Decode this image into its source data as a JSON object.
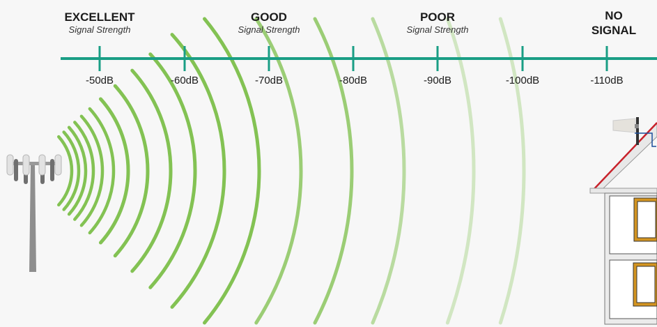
{
  "scale": {
    "categories": [
      {
        "label": "EXCELLENT",
        "sub": "Signal Strength"
      },
      {
        "label": "GOOD",
        "sub": "Signal Strength"
      },
      {
        "label": "POOR",
        "sub": "Signal Strength"
      },
      {
        "label": "NO SIGNAL",
        "sub": ""
      }
    ],
    "ticks": [
      "-50dB",
      "-60dB",
      "-70dB",
      "-80dB",
      "-90dB",
      "-100dB",
      "-110dB"
    ],
    "line_color": "#1a9e85"
  },
  "illustration": {
    "source": "cell-tower-icon",
    "receiver": "house-with-antenna",
    "wave_color": "#7cbf4a"
  }
}
